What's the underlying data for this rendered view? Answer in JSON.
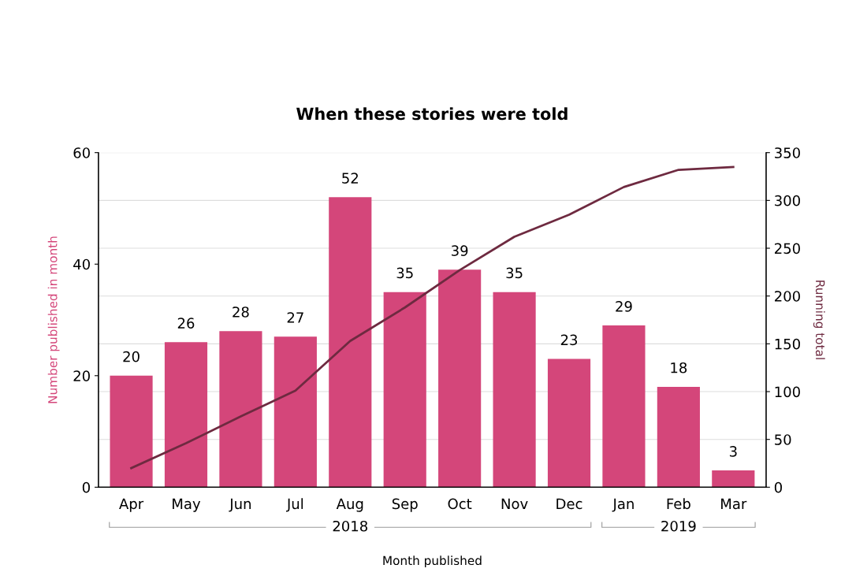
{
  "chart_data": {
    "type": "bar",
    "title": "When these stories were told",
    "categories": [
      "Apr",
      "May",
      "Jun",
      "Jul",
      "Aug",
      "Sep",
      "Oct",
      "Nov",
      "Dec",
      "Jan",
      "Feb",
      "Mar"
    ],
    "annotations": [
      "2018",
      "2019"
    ],
    "series": [
      {
        "color": "#d4467a",
        "values": [
          20,
          26,
          28,
          27,
          52,
          35,
          39,
          35,
          23,
          29,
          18,
          3
        ],
        "value_labels": [
          "20",
          "26",
          "28",
          "27",
          "52",
          "35",
          "39",
          "35",
          "23",
          "29",
          "18",
          "3"
        ]
      },
      {
        "type": "line",
        "axis": "y2",
        "color": "#6e2a40",
        "values": [
          20,
          46,
          74,
          101,
          153,
          188,
          227,
          262,
          285,
          314,
          332,
          335
        ]
      }
    ],
    "xlabel": "Month published",
    "ylabel": "Number published in month",
    "y2label": "Running total",
    "ylim": [
      0,
      60
    ],
    "yticks": [
      0,
      20,
      40,
      60
    ],
    "y2lim": [
      0,
      350
    ],
    "y2ticks": [
      0,
      50,
      100,
      150,
      200,
      250,
      300,
      350
    ],
    "grid": true,
    "marker": "none",
    "line_style": "solid"
  }
}
